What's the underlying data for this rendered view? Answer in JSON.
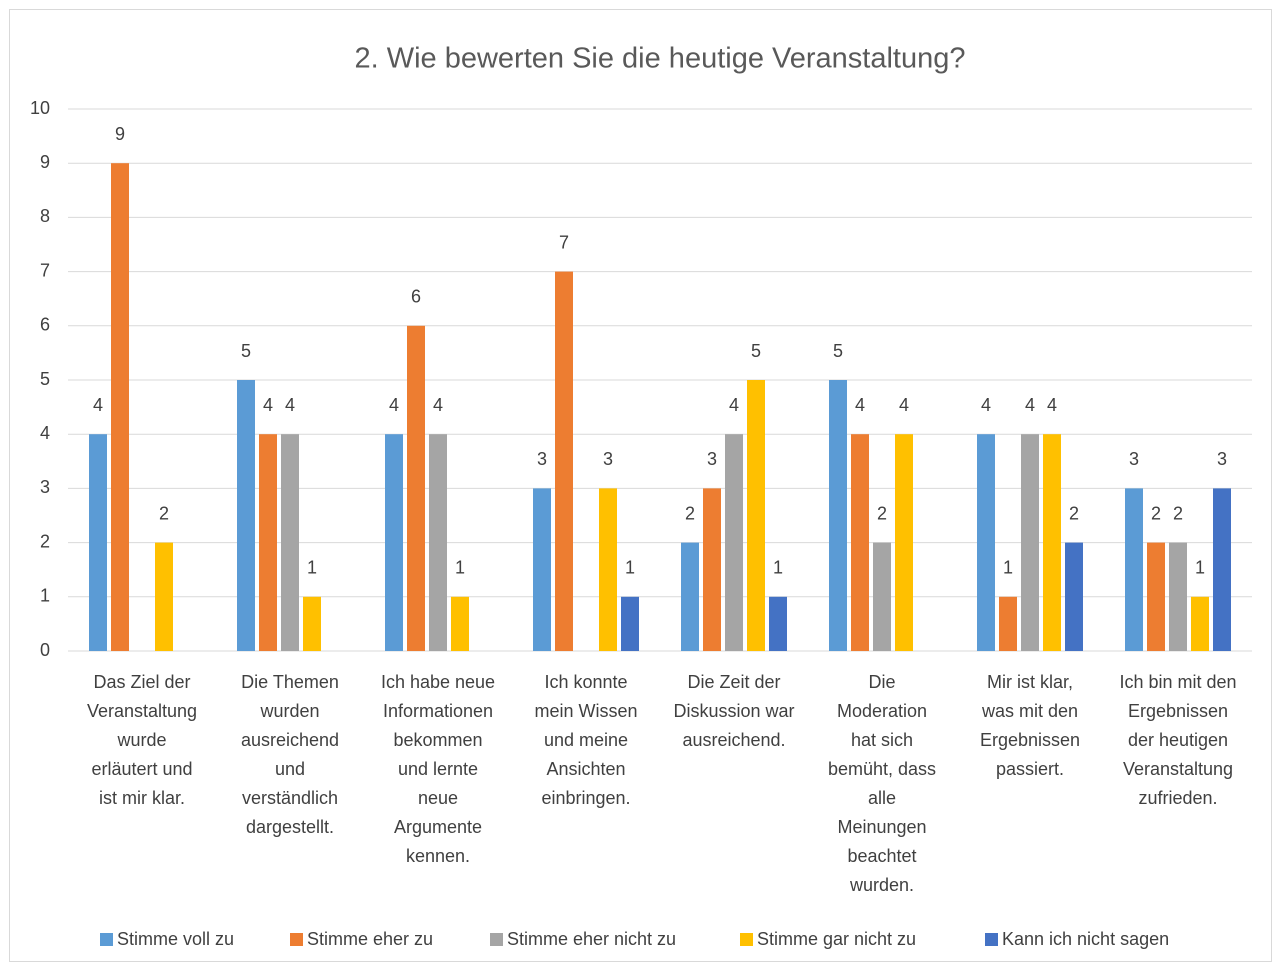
{
  "chart_data": {
    "type": "bar",
    "title": "2. Wie bewerten Sie die heutige Veranstaltung?",
    "categories": [
      [
        "Das Ziel der",
        "Veranstaltung",
        "wurde",
        "erläutert und",
        "ist mir klar."
      ],
      [
        "Die Themen",
        "wurden",
        "ausreichend",
        "und",
        "verständlich",
        "dargestellt."
      ],
      [
        "Ich habe neue",
        "Informationen",
        "bekommen",
        "und lernte",
        "neue",
        "Argumente",
        "kennen."
      ],
      [
        "Ich konnte",
        "mein Wissen",
        "und meine",
        "Ansichten",
        "einbringen."
      ],
      [
        "Die Zeit der",
        "Diskussion war",
        "ausreichend."
      ],
      [
        "Die",
        "Moderation",
        "hat sich",
        "bemüht, dass",
        "alle",
        "Meinungen",
        "beachtet",
        "wurden."
      ],
      [
        "Mir ist klar,",
        "was mit den",
        "Ergebnissen",
        "passiert."
      ],
      [
        "Ich bin mit den",
        "Ergebnissen",
        "der heutigen",
        "Veranstaltung",
        "zufrieden."
      ]
    ],
    "series": [
      {
        "name": "Stimme voll zu",
        "color": "#5b9bd5",
        "values": [
          4,
          5,
          4,
          3,
          2,
          5,
          4,
          3
        ]
      },
      {
        "name": "Stimme eher zu",
        "color": "#ed7d31",
        "values": [
          9,
          4,
          6,
          7,
          3,
          4,
          1,
          2
        ]
      },
      {
        "name": "Stimme eher nicht zu",
        "color": "#a5a5a5",
        "values": [
          null,
          4,
          4,
          null,
          4,
          2,
          4,
          2
        ]
      },
      {
        "name": "Stimme gar nicht zu",
        "color": "#ffc000",
        "values": [
          2,
          1,
          1,
          3,
          5,
          4,
          4,
          1
        ]
      },
      {
        "name": "Kann ich nicht sagen",
        "color": "#4472c4",
        "values": [
          null,
          null,
          null,
          1,
          1,
          null,
          2,
          3
        ]
      }
    ],
    "ylim": [
      0,
      10
    ],
    "yticks": [
      0,
      1,
      2,
      3,
      4,
      5,
      6,
      7,
      8,
      9,
      10
    ],
    "grid": true,
    "legend": "bottom"
  }
}
